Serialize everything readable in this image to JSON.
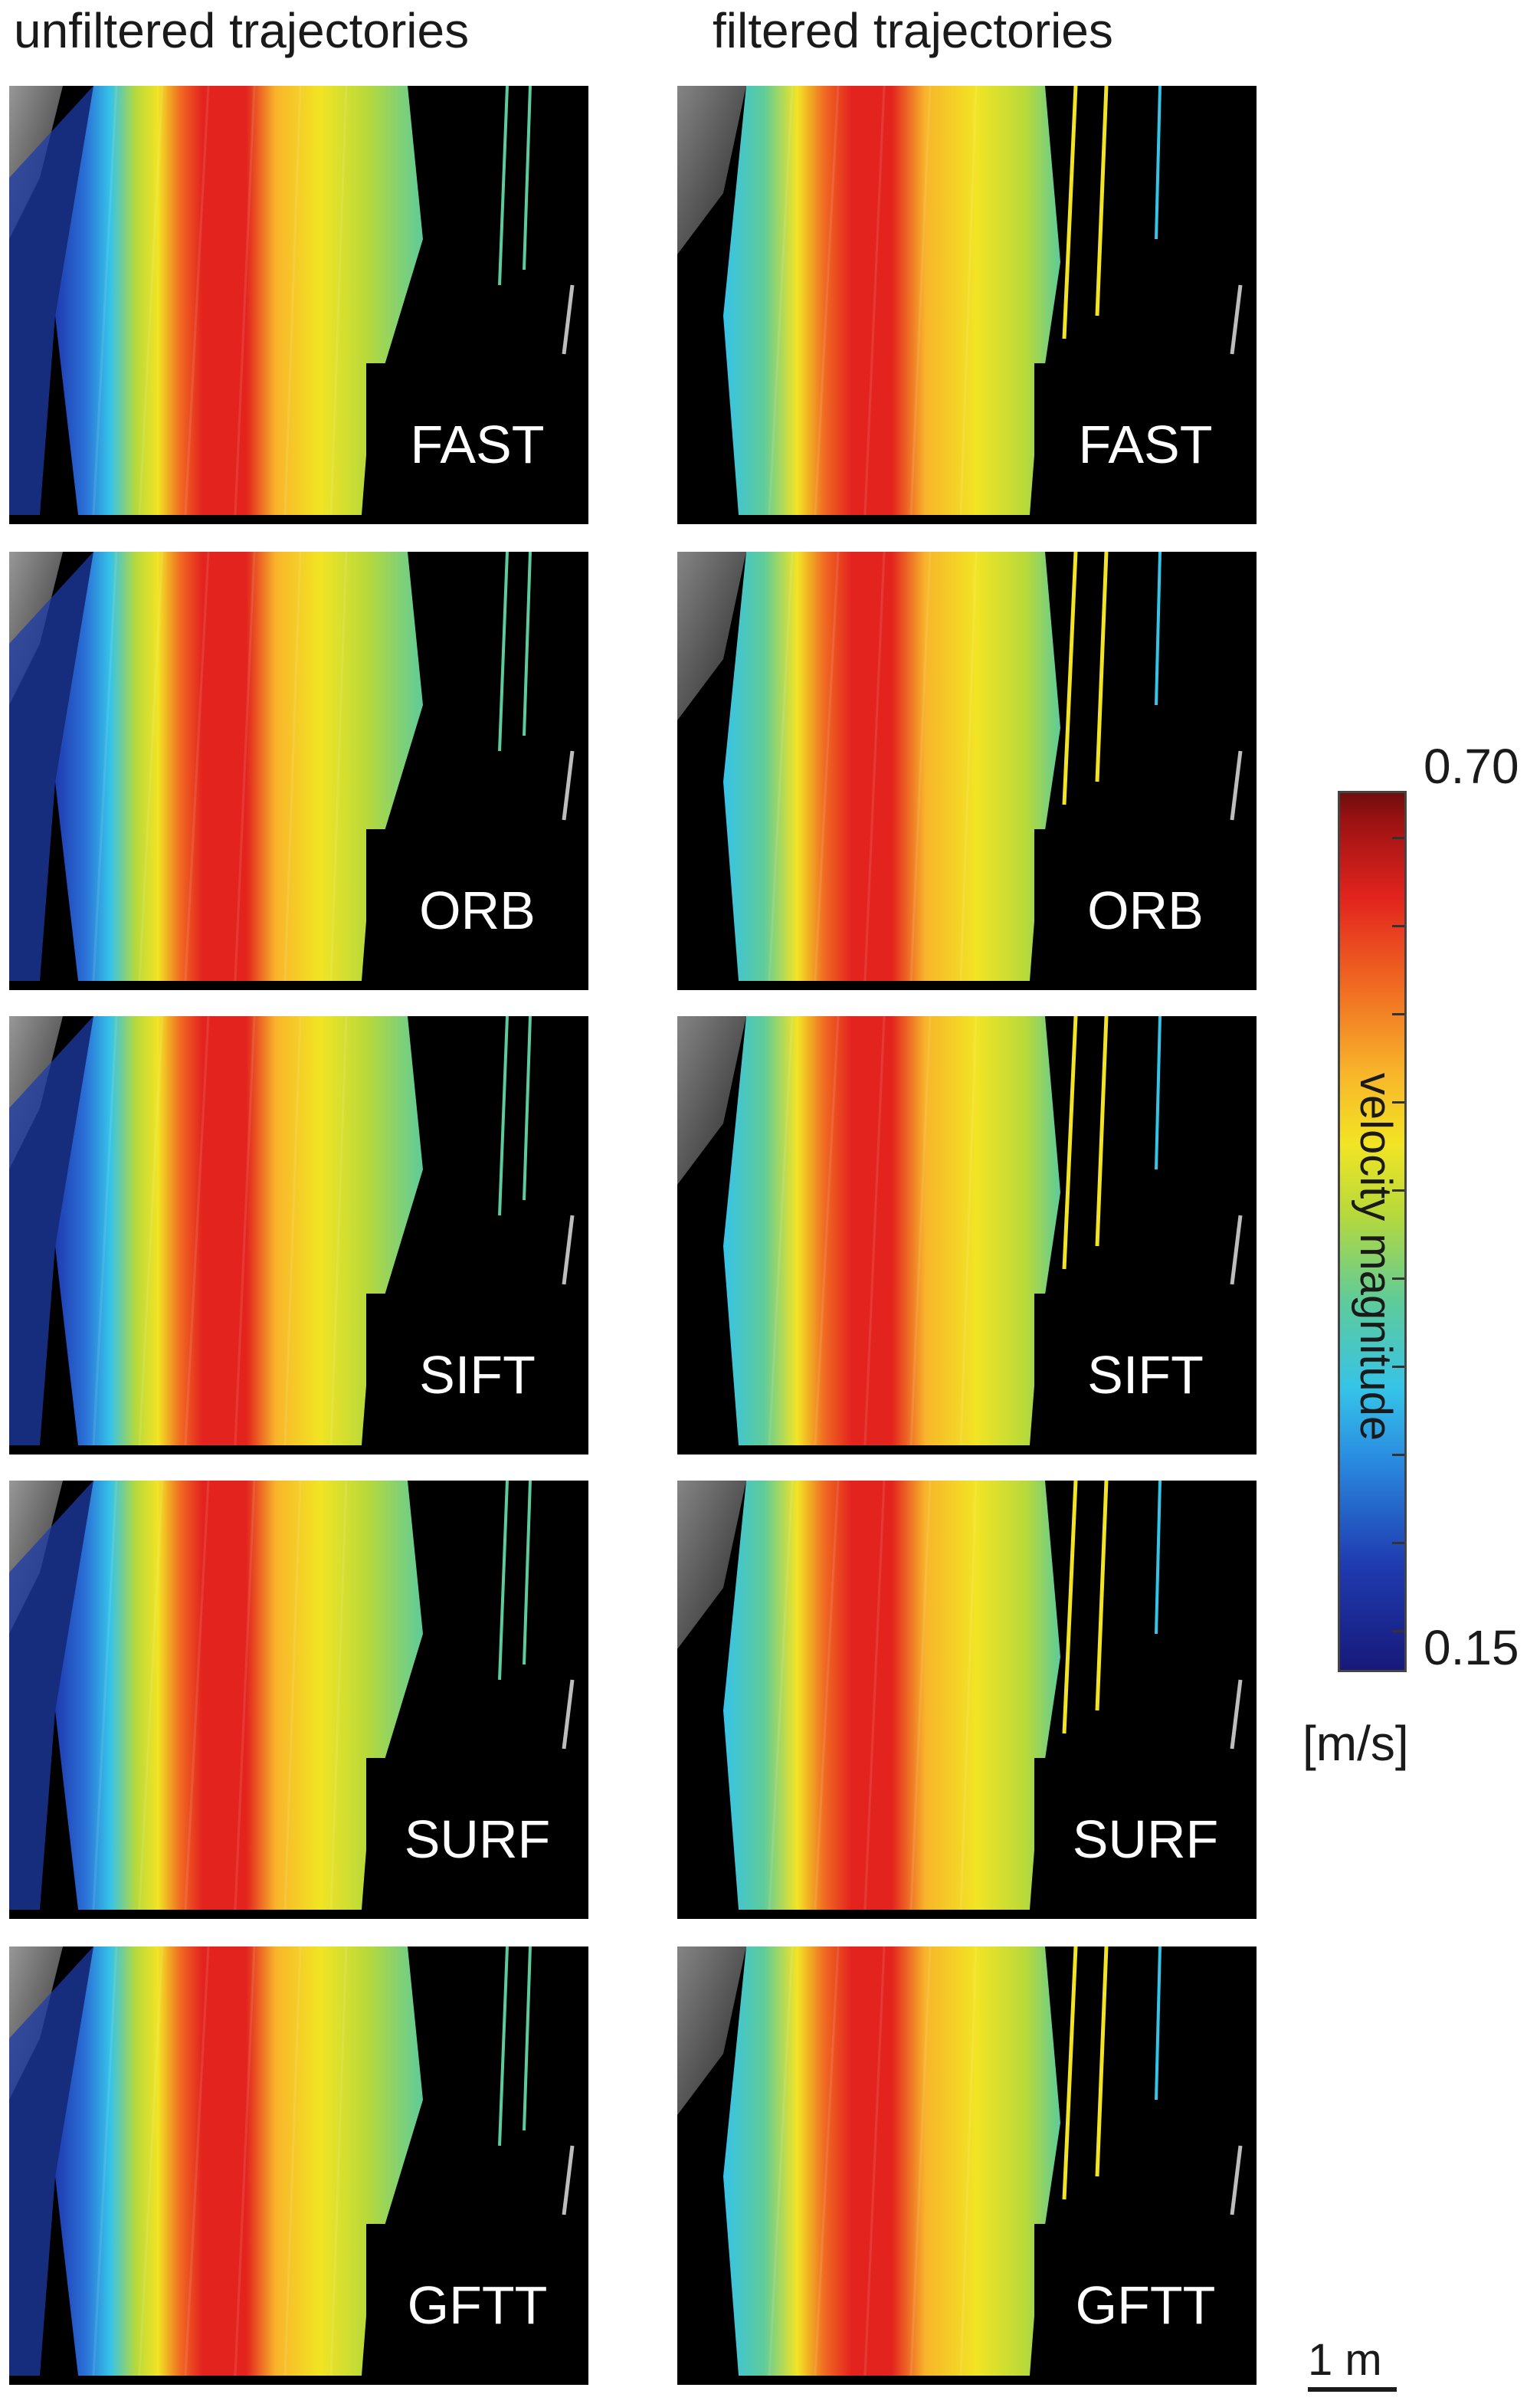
{
  "columns": {
    "left_title": "unfiltered trajectories",
    "right_title": "filtered trajectories"
  },
  "rows": [
    "FAST",
    "ORB",
    "SIFT",
    "SURF",
    "GFTT"
  ],
  "colorbar": {
    "max_label": "0.70",
    "min_label": "0.15",
    "title": "velocity magnitude",
    "unit": "[m/s]",
    "colors": [
      "#17197a",
      "#1f3bb0",
      "#2a8be0",
      "#35c3e8",
      "#5ecb9a",
      "#b7d93a",
      "#f2e424",
      "#f8b52a",
      "#f06a22",
      "#e3241e",
      "#9b1212"
    ]
  },
  "scalebar": {
    "label": "1 m"
  }
}
